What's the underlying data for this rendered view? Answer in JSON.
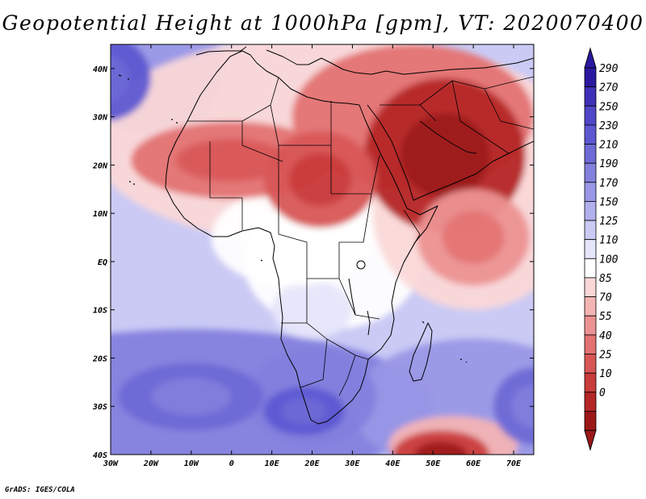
{
  "title": "Geopotential Height at 1000hPa [gpm], VT: 2020070400",
  "footer": "GrADS: IGES/COLA",
  "map": {
    "variable": "Geopotential Height",
    "level": "1000hPa",
    "units": "gpm",
    "valid_time": "2020070400",
    "lon_range": [
      -30,
      75
    ],
    "lat_range": [
      -40,
      45
    ],
    "lon_labels": [
      "30W",
      "20W",
      "10W",
      "0",
      "10E",
      "20E",
      "30E",
      "40E",
      "50E",
      "60E",
      "70E"
    ],
    "lat_labels": [
      "40N",
      "30N",
      "20N",
      "10N",
      "EQ",
      "10S",
      "20S",
      "30S",
      "40S"
    ],
    "field_features": [
      {
        "name": "Arabian heat low",
        "lon": 53,
        "lat": 22,
        "value": 5,
        "rx": 20,
        "ry": 16
      },
      {
        "name": "Sahara low",
        "lon": 0,
        "lat": 21,
        "value": 40,
        "rx": 25,
        "ry": 8
      },
      {
        "name": "Sudan low",
        "lon": 22,
        "lat": 17,
        "value": 35,
        "rx": 14,
        "ry": 10
      },
      {
        "name": "Somali low",
        "lon": 60,
        "lat": 5,
        "value": 60,
        "rx": 14,
        "ry": 10
      },
      {
        "name": "Mascarene low",
        "lon": 52,
        "lat": -40,
        "value": 10,
        "rx": 12,
        "ry": 5
      },
      {
        "name": "Azores high",
        "lon": -32,
        "lat": 38,
        "value": 230,
        "rx": 12,
        "ry": 9
      },
      {
        "name": "South Atlantic high",
        "lon": -10,
        "lat": -28,
        "value": 215,
        "rx": 18,
        "ry": 7
      },
      {
        "name": "Southern Africa high",
        "lon": 18,
        "lat": -31,
        "value": 240,
        "rx": 10,
        "ry": 5
      },
      {
        "name": "Mascarene high",
        "lon": 75,
        "lat": -30,
        "value": 220,
        "rx": 10,
        "ry": 8
      }
    ]
  },
  "colorbar": {
    "labels": [
      "290",
      "270",
      "250",
      "230",
      "210",
      "190",
      "170",
      "150",
      "125",
      "110",
      "100",
      "85",
      "70",
      "55",
      "40",
      "25",
      "10",
      "0"
    ],
    "colors": [
      "#2a19a0",
      "#3f30b8",
      "#5046c8",
      "#5d58d2",
      "#6e6ad6",
      "#8380de",
      "#9997e6",
      "#b0b0ee",
      "#cacaf5",
      "#e6e6fb",
      "#ffffff",
      "#fbd8d8",
      "#f4b4b4",
      "#ec9292",
      "#e37272",
      "#d85656",
      "#c93c3c",
      "#b52626",
      "#9c1818"
    ]
  },
  "colors": {
    "background": "#ffffff",
    "frame": "#000000",
    "coastline": "#000000"
  }
}
